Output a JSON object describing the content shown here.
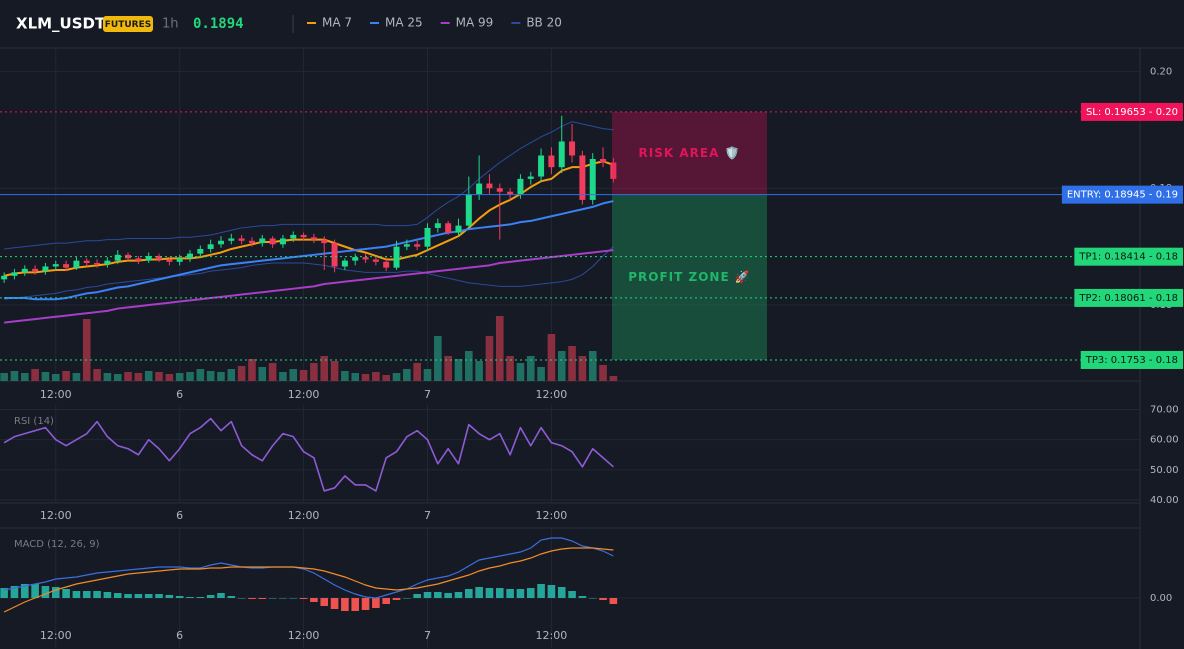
{
  "header": {
    "symbol": "XLM_USDT",
    "badge": "FUTURES",
    "timeframe": "1h",
    "price": 0.1894
  },
  "chart_data": [
    {
      "type": "candlestick",
      "xlim": [
        -0.4,
        110
      ],
      "ylim": [
        0.1735,
        0.202
      ],
      "grid": true,
      "xticks": [
        {
          "value": 5,
          "label": "12:00"
        },
        {
          "value": 17,
          "label": "6"
        },
        {
          "value": 29,
          "label": "12:00"
        },
        {
          "value": 41,
          "label": "7"
        },
        {
          "value": 53,
          "label": "12:00"
        }
      ],
      "yticks": [
        {
          "value": 0.2,
          "label": "0.20"
        },
        0.19,
        0.18
      ],
      "up_color": "#1fd98a",
      "down_color": "#f23c5c",
      "volume_up_color": "#1f6f63",
      "volume_down_color": "#8a2f3f",
      "open": [
        0.1822,
        0.1825,
        0.1828,
        0.1831,
        0.1829,
        0.1833,
        0.1835,
        0.1832,
        0.1838,
        0.1836,
        0.1835,
        0.1838,
        0.1843,
        0.184,
        0.1838,
        0.1842,
        0.1839,
        0.1837,
        0.184,
        0.1844,
        0.1848,
        0.1852,
        0.1855,
        0.1857,
        0.1855,
        0.1853,
        0.1857,
        0.1852,
        0.1857,
        0.186,
        0.1858,
        0.1856,
        0.1853,
        0.1833,
        0.1838,
        0.1841,
        0.1839,
        0.1837,
        0.1832,
        0.185,
        0.1852,
        0.185,
        0.1866,
        0.187,
        0.1862,
        0.1868,
        0.1895,
        0.1904,
        0.19,
        0.1897,
        0.1895,
        0.1908,
        0.191,
        0.1928,
        0.1918,
        0.194,
        0.1928,
        0.189,
        0.1925,
        0.1922
      ],
      "high": [
        0.1828,
        0.1831,
        0.1834,
        0.1834,
        0.1836,
        0.1838,
        0.1838,
        0.1841,
        0.184,
        0.1839,
        0.1841,
        0.1847,
        0.1845,
        0.1842,
        0.1845,
        0.1844,
        0.1841,
        0.1843,
        0.1847,
        0.1851,
        0.1856,
        0.1859,
        0.1861,
        0.186,
        0.1858,
        0.186,
        0.1859,
        0.186,
        0.1863,
        0.1862,
        0.1861,
        0.1859,
        0.1856,
        0.184,
        0.1844,
        0.1844,
        0.1842,
        0.1841,
        0.1855,
        0.1856,
        0.1855,
        0.187,
        0.1874,
        0.1872,
        0.1874,
        0.191,
        0.1928,
        0.1912,
        0.1904,
        0.19,
        0.1912,
        0.1914,
        0.1934,
        0.1935,
        0.1962,
        0.1955,
        0.1932,
        0.193,
        0.1935,
        0.1926
      ],
      "low": [
        0.1819,
        0.1822,
        0.1825,
        0.1826,
        0.1826,
        0.183,
        0.1829,
        0.183,
        0.1833,
        0.1832,
        0.1832,
        0.1835,
        0.1838,
        0.1835,
        0.1836,
        0.1837,
        0.1834,
        0.1834,
        0.1837,
        0.1841,
        0.1845,
        0.1849,
        0.1852,
        0.1852,
        0.185,
        0.185,
        0.1849,
        0.1849,
        0.1854,
        0.1855,
        0.1853,
        0.183,
        0.1828,
        0.183,
        0.1834,
        0.1836,
        0.1834,
        0.1829,
        0.183,
        0.1847,
        0.1847,
        0.1846,
        0.1862,
        0.186,
        0.1859,
        0.1865,
        0.189,
        0.1895,
        0.1856,
        0.189,
        0.1891,
        0.1903,
        0.1906,
        0.1912,
        0.1913,
        0.1922,
        0.1886,
        0.1886,
        0.1918,
        0.1905
      ],
      "close": [
        0.1825,
        0.1828,
        0.1831,
        0.1829,
        0.1833,
        0.1835,
        0.1832,
        0.1838,
        0.1836,
        0.1835,
        0.1838,
        0.1843,
        0.184,
        0.1838,
        0.1842,
        0.1839,
        0.1837,
        0.184,
        0.1844,
        0.1848,
        0.1852,
        0.1855,
        0.1857,
        0.1855,
        0.1853,
        0.1857,
        0.1852,
        0.1857,
        0.186,
        0.1858,
        0.1856,
        0.1853,
        0.1833,
        0.1838,
        0.1841,
        0.1839,
        0.1837,
        0.1832,
        0.185,
        0.1852,
        0.185,
        0.1866,
        0.187,
        0.1862,
        0.1868,
        0.1895,
        0.1904,
        0.19,
        0.1897,
        0.1895,
        0.1908,
        0.191,
        0.1928,
        0.1918,
        0.194,
        0.1928,
        0.189,
        0.1925,
        0.1922,
        0.1908
      ],
      "volume": [
        8,
        10,
        8,
        12,
        9,
        7,
        10,
        8,
        62,
        12,
        8,
        7,
        9,
        8,
        10,
        9,
        7,
        8,
        9,
        12,
        10,
        9,
        12,
        15,
        22,
        14,
        18,
        9,
        12,
        11,
        18,
        25,
        20,
        10,
        8,
        7,
        9,
        6,
        8,
        12,
        18,
        12,
        45,
        25,
        22,
        30,
        20,
        45,
        65,
        25,
        18,
        25,
        14,
        47,
        30,
        35,
        25,
        30,
        16,
        5
      ],
      "series": [
        {
          "name": "MA 7",
          "color": "#f59e0b",
          "values": [
            0.1825,
            0.1827,
            0.1828,
            0.1828,
            0.1829,
            0.183,
            0.183,
            0.1832,
            0.1833,
            0.1834,
            0.1835,
            0.1837,
            0.1838,
            0.1838,
            0.1839,
            0.1839,
            0.184,
            0.184,
            0.184,
            0.1841,
            0.1843,
            0.1845,
            0.1848,
            0.185,
            0.1852,
            0.1854,
            0.1854,
            0.1855,
            0.1856,
            0.1856,
            0.1856,
            0.1856,
            0.1853,
            0.185,
            0.1847,
            0.1845,
            0.1842,
            0.1839,
            0.1839,
            0.1841,
            0.1843,
            0.1847,
            0.1851,
            0.1855,
            0.1859,
            0.1866,
            0.1874,
            0.1881,
            0.1886,
            0.189,
            0.1895,
            0.1901,
            0.1906,
            0.1908,
            0.1915,
            0.1918,
            0.1918,
            0.1921,
            0.1923,
            0.192
          ]
        },
        {
          "name": "MA 25",
          "color": "#3b82f6",
          "values": [
            0.1806,
            0.1806,
            0.1806,
            0.1805,
            0.1805,
            0.1805,
            0.1806,
            0.1808,
            0.181,
            0.1811,
            0.1813,
            0.1815,
            0.1816,
            0.1818,
            0.182,
            0.1822,
            0.1824,
            0.1826,
            0.1828,
            0.183,
            0.1832,
            0.1834,
            0.1835,
            0.1836,
            0.1837,
            0.1838,
            0.1839,
            0.184,
            0.1841,
            0.1842,
            0.1843,
            0.1844,
            0.1845,
            0.1846,
            0.1847,
            0.1848,
            0.1849,
            0.185,
            0.1852,
            0.1854,
            0.1856,
            0.1858,
            0.186,
            0.1862,
            0.1863,
            0.1865,
            0.1866,
            0.1867,
            0.1868,
            0.1869,
            0.1871,
            0.1872,
            0.1874,
            0.1876,
            0.1878,
            0.188,
            0.1882,
            0.1884,
            0.1887,
            0.1889
          ]
        },
        {
          "name": "MA 99",
          "color": "#a73ec8",
          "values": [
            0.1785,
            0.1786,
            0.1787,
            0.1788,
            0.1789,
            0.179,
            0.1791,
            0.1792,
            0.1793,
            0.1794,
            0.1795,
            0.1797,
            0.1798,
            0.1799,
            0.18,
            0.1801,
            0.1802,
            0.1803,
            0.1804,
            0.1805,
            0.1806,
            0.1807,
            0.1808,
            0.1809,
            0.181,
            0.1811,
            0.1812,
            0.1813,
            0.1814,
            0.1815,
            0.1816,
            0.1818,
            0.1819,
            0.182,
            0.1821,
            0.1822,
            0.1823,
            0.1824,
            0.1825,
            0.1826,
            0.1827,
            0.1828,
            0.1829,
            0.183,
            0.1831,
            0.1832,
            0.1833,
            0.1834,
            0.1836,
            0.1837,
            0.1838,
            0.1839,
            0.184,
            0.1841,
            0.1842,
            0.1843,
            0.1844,
            0.1845,
            0.1846,
            0.1847
          ]
        },
        {
          "name": "BB 20",
          "color": "#2b4a9e",
          "upper": [
            0.1848,
            0.1849,
            0.185,
            0.1851,
            0.1852,
            0.1853,
            0.1853,
            0.1854,
            0.1855,
            0.1855,
            0.1856,
            0.1856,
            0.1857,
            0.1857,
            0.1857,
            0.1857,
            0.1857,
            0.1858,
            0.1858,
            0.1859,
            0.186,
            0.1862,
            0.1864,
            0.1866,
            0.1867,
            0.1868,
            0.1868,
            0.1869,
            0.1869,
            0.1869,
            0.1869,
            0.1869,
            0.1869,
            0.1869,
            0.1869,
            0.1869,
            0.1869,
            0.1868,
            0.1868,
            0.1868,
            0.1869,
            0.1875,
            0.1882,
            0.1888,
            0.1893,
            0.19,
            0.1908,
            0.1915,
            0.1922,
            0.1928,
            0.1934,
            0.1939,
            0.1944,
            0.1948,
            0.1953,
            0.1957,
            0.1955,
            0.1953,
            0.1951,
            0.195
          ],
          "lower": [
            0.1805,
            0.1806,
            0.1807,
            0.1808,
            0.1809,
            0.181,
            0.1812,
            0.1813,
            0.1815,
            0.1816,
            0.1818,
            0.1819,
            0.182,
            0.1821,
            0.1822,
            0.1823,
            0.1824,
            0.1825,
            0.1826,
            0.1827,
            0.1829,
            0.183,
            0.1831,
            0.1832,
            0.1834,
            0.1835,
            0.1836,
            0.1836,
            0.1836,
            0.1836,
            0.1835,
            0.1834,
            0.1832,
            0.183,
            0.1829,
            0.1828,
            0.1828,
            0.1828,
            0.1828,
            0.1829,
            0.1829,
            0.1827,
            0.1825,
            0.1823,
            0.1821,
            0.1819,
            0.1818,
            0.1817,
            0.1816,
            0.1816,
            0.1816,
            0.1817,
            0.1818,
            0.1819,
            0.182,
            0.1822,
            0.1826,
            0.1833,
            0.1842,
            0.185
          ]
        }
      ],
      "levels": [
        {
          "label": "SL: 0.19653 - 0.20",
          "value": 0.19653,
          "color": "#f0145a",
          "line": "dotted"
        },
        {
          "label": "ENTRY: 0.18945 - 0.19",
          "value": 0.18945,
          "color": "#2f6fe8",
          "line": "solid"
        },
        {
          "label": "TP1: 0.18414 - 0.18",
          "value": 0.18414,
          "color": "#22d67a",
          "line": "dotted"
        },
        {
          "label": "TP2: 0.18061 - 0.18",
          "value": 0.18061,
          "color": "#22d67a",
          "line": "dotted"
        },
        {
          "label": "TP3: 0.1753 - 0.18",
          "value": 0.1753,
          "color": "#22d67a",
          "line": "dotted"
        }
      ],
      "zones": [
        {
          "label": "RISK AREA 🛡️",
          "from": 0.18945,
          "to": 0.19653,
          "color": "#e0145a"
        },
        {
          "label": "PROFIT ZONE 🚀",
          "from": 0.1753,
          "to": 0.18945,
          "color": "#1fb86a"
        }
      ]
    },
    {
      "type": "line",
      "title": "RSI (14)",
      "color": "#8e5bd6",
      "xlim": [
        -0.4,
        110
      ],
      "ylim": [
        39,
        71.5
      ],
      "grid": true,
      "xticks": [
        {
          "value": 5,
          "label": "12:00"
        },
        {
          "value": 17,
          "label": "6"
        },
        {
          "value": 29,
          "label": "12:00"
        },
        {
          "value": 41,
          "label": "7"
        },
        {
          "value": 53,
          "label": "12:00"
        }
      ],
      "yticks": [
        {
          "value": 40,
          "label": "40.00"
        },
        {
          "value": 50,
          "label": "50.00"
        },
        {
          "value": 60,
          "label": "60.00"
        },
        {
          "value": 70,
          "label": "70.00"
        }
      ],
      "values": [
        59,
        61,
        62,
        63,
        64,
        60,
        58,
        60,
        62,
        66,
        61,
        58,
        57,
        55,
        60,
        57,
        53,
        57,
        62,
        64,
        67,
        63,
        66,
        58,
        55,
        53,
        58,
        62,
        61,
        56,
        54,
        43,
        44,
        48,
        45,
        45,
        43,
        54,
        56,
        61,
        63,
        60,
        52,
        57,
        52,
        65,
        62,
        60,
        62,
        55,
        64,
        58,
        64,
        59,
        58,
        56,
        51,
        57,
        54,
        51
      ]
    },
    {
      "type": "macd",
      "title": "MACD (12, 26, 9)",
      "xlim": [
        -0.4,
        110
      ],
      "ylim": [
        -0.001,
        0.0014
      ],
      "grid": true,
      "xticks": [
        {
          "value": 5,
          "label": "12:00"
        },
        {
          "value": 17,
          "label": "6"
        },
        {
          "value": 29,
          "label": "12:00"
        },
        {
          "value": 41,
          "label": "7"
        },
        {
          "value": 53,
          "label": "12:00"
        }
      ],
      "yticks": [
        {
          "value": 0,
          "label": "0.00"
        }
      ],
      "macd_color": "#3b6fe0",
      "signal_color": "#f28c28",
      "hist_up_color": "#26a69a",
      "hist_down_color": "#ef5350",
      "macd": [
        0.00016,
        0.0002,
        0.00024,
        0.00028,
        0.00032,
        0.00038,
        0.0004,
        0.00042,
        0.00046,
        0.0005,
        0.00052,
        0.00054,
        0.00056,
        0.00058,
        0.0006,
        0.00062,
        0.00062,
        0.00062,
        0.0006,
        0.0006,
        0.00066,
        0.0007,
        0.00066,
        0.00062,
        0.0006,
        0.0006,
        0.00062,
        0.00062,
        0.00062,
        0.00058,
        0.0005,
        0.00038,
        0.00026,
        0.00016,
        8e-05,
        2e-05,
        0,
        6e-05,
        0.00012,
        0.00018,
        0.00028,
        0.00036,
        0.0004,
        0.00044,
        0.00052,
        0.00064,
        0.00076,
        0.0008,
        0.00084,
        0.00088,
        0.00092,
        0.001,
        0.00116,
        0.0012,
        0.0012,
        0.00114,
        0.00104,
        0.001,
        0.00094,
        0.00084
      ],
      "signal": [
        -0.00028,
        -0.00018,
        -8e-05,
        0,
        8e-05,
        0.00016,
        0.00022,
        0.00028,
        0.00032,
        0.00036,
        0.0004,
        0.00044,
        0.00048,
        0.0005,
        0.00052,
        0.00054,
        0.00056,
        0.00058,
        0.00058,
        0.00058,
        0.0006,
        0.0006,
        0.00062,
        0.00062,
        0.00062,
        0.00062,
        0.00062,
        0.00062,
        0.00062,
        0.0006,
        0.00058,
        0.00054,
        0.00048,
        0.00042,
        0.00034,
        0.00026,
        0.0002,
        0.00018,
        0.00016,
        0.00018,
        0.0002,
        0.00024,
        0.00028,
        0.00034,
        0.0004,
        0.00046,
        0.00054,
        0.0006,
        0.00064,
        0.0007,
        0.00074,
        0.0008,
        0.00088,
        0.00094,
        0.00098,
        0.001,
        0.001,
        0.001,
        0.00098,
        0.00096
      ],
      "histogram": [
        0.0002,
        0.00024,
        0.00028,
        0.00028,
        0.00024,
        0.00022,
        0.00018,
        0.00014,
        0.00014,
        0.00014,
        0.00012,
        0.0001,
        8e-05,
        8e-05,
        8e-05,
        8e-05,
        6e-05,
        4e-05,
        2e-05,
        2e-05,
        6e-05,
        0.0001,
        4e-05,
        0,
        -2e-05,
        -2e-05,
        0,
        0,
        0,
        -2e-05,
        -8e-05,
        -0.00016,
        -0.00022,
        -0.00026,
        -0.00026,
        -0.00024,
        -0.0002,
        -0.00012,
        -4e-05,
        0,
        8e-05,
        0.00012,
        0.00012,
        0.0001,
        0.00012,
        0.00018,
        0.00022,
        0.0002,
        0.0002,
        0.00018,
        0.00018,
        0.0002,
        0.00028,
        0.00026,
        0.00022,
        0.00014,
        4e-05,
        0,
        -4e-05,
        -0.00012
      ]
    }
  ]
}
